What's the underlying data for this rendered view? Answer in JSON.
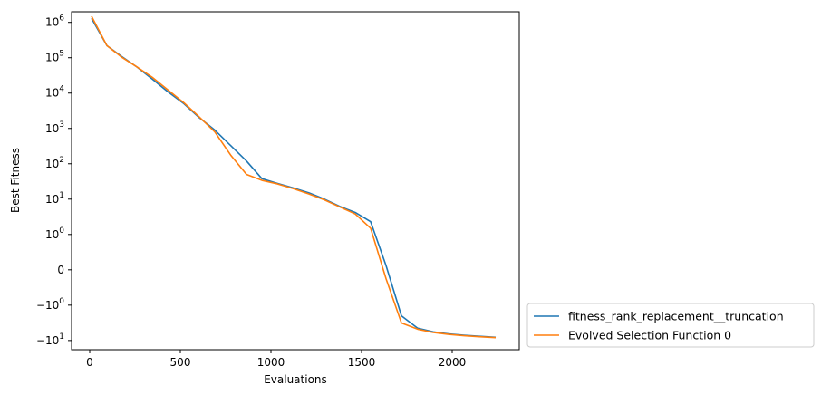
{
  "chart_data": {
    "type": "line",
    "title": "",
    "xlabel": "Evaluations",
    "ylabel": "Best Fitness",
    "yscale": "symlog",
    "xlim": [
      -100,
      2370
    ],
    "x_ticks": [
      {
        "value": 0,
        "label": "0"
      },
      {
        "value": 500,
        "label": "500"
      },
      {
        "value": 1000,
        "label": "1000"
      },
      {
        "value": 1500,
        "label": "1500"
      },
      {
        "value": 2000,
        "label": "2000"
      }
    ],
    "y_ticks": [
      {
        "value": 1000000,
        "base": "10",
        "exp": "6"
      },
      {
        "value": 100000,
        "base": "10",
        "exp": "5"
      },
      {
        "value": 10000,
        "base": "10",
        "exp": "4"
      },
      {
        "value": 1000,
        "base": "10",
        "exp": "3"
      },
      {
        "value": 100,
        "base": "10",
        "exp": "2"
      },
      {
        "value": 10,
        "base": "10",
        "exp": "1"
      },
      {
        "value": 1,
        "base": "10",
        "exp": "0"
      },
      {
        "value": 0,
        "base": "0",
        "exp": ""
      },
      {
        "value": -1,
        "base": "−10",
        "exp": "0"
      },
      {
        "value": -10,
        "base": "−10",
        "exp": "1"
      }
    ],
    "grid": false,
    "legend_position": "outside-lower-right",
    "series": [
      {
        "name": "fitness_rank_replacement__truncation",
        "color": "#1f77b4",
        "x": [
          10,
          95,
          175,
          260,
          345,
          430,
          520,
          605,
          690,
          780,
          865,
          950,
          1035,
          1120,
          1210,
          1295,
          1380,
          1465,
          1550,
          1635,
          1720,
          1810,
          1895,
          1980,
          2065,
          2150,
          2240
        ],
        "y": [
          1300000,
          220000,
          110000,
          55000,
          25000,
          11000,
          5000,
          2000,
          900,
          320,
          120,
          38,
          28,
          21,
          15,
          10,
          6.2,
          4.2,
          2.3,
          0.12,
          -2.0,
          -4.5,
          -5.7,
          -6.5,
          -7.1,
          -7.6,
          -8.1
        ]
      },
      {
        "name": "Evolved Selection Function 0",
        "color": "#ff7f0e",
        "x": [
          10,
          95,
          175,
          260,
          345,
          430,
          520,
          605,
          690,
          780,
          865,
          950,
          1035,
          1120,
          1210,
          1295,
          1380,
          1465,
          1550,
          1635,
          1720,
          1810,
          1895,
          1980,
          2065,
          2150,
          2240
        ],
        "y": [
          1500000,
          220000,
          105000,
          55000,
          28000,
          12500,
          5300,
          2100,
          800,
          170,
          50,
          34,
          27,
          20,
          14,
          9.5,
          6.0,
          3.8,
          1.5,
          -0.25,
          -3.2,
          -4.8,
          -5.9,
          -6.7,
          -7.3,
          -7.8,
          -8.3
        ]
      }
    ]
  }
}
